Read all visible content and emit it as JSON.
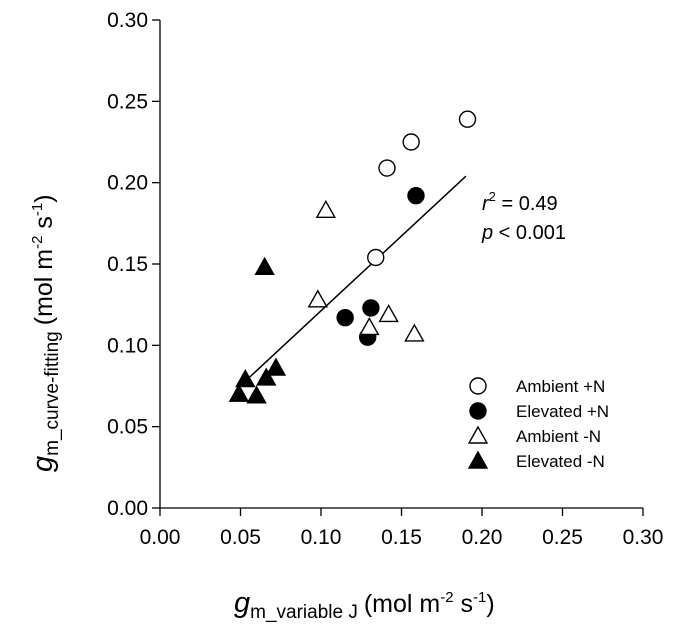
{
  "chart_data": {
    "type": "scatter",
    "title": "",
    "xlabel": {
      "symbol": "g",
      "subscript": "m_variable J",
      "unit_prefix": "(mol m",
      "unit_sup1": "-2",
      "unit_mid": " s",
      "unit_sup2": "-1",
      "unit_suffix": ")"
    },
    "ylabel": {
      "symbol": "g",
      "subscript": "m_curve-fitting",
      "unit_prefix": "(mol m",
      "unit_sup1": "-2",
      "unit_mid": " s",
      "unit_sup2": "-1",
      "unit_suffix": ")"
    },
    "xlim": [
      0,
      0.3
    ],
    "ylim": [
      0,
      0.3
    ],
    "x_ticks": [
      "0.00",
      "0.05",
      "0.10",
      "0.15",
      "0.20",
      "0.25",
      "0.30"
    ],
    "y_ticks": [
      "0.00",
      "0.05",
      "0.10",
      "0.15",
      "0.20",
      "0.25",
      "0.30"
    ],
    "grid": false,
    "legend_position": "bottom-right",
    "series": [
      {
        "name": "Ambient +N",
        "marker": "circle-open",
        "points": [
          [
            0.134,
            0.154
          ],
          [
            0.141,
            0.209
          ],
          [
            0.156,
            0.225
          ],
          [
            0.191,
            0.239
          ]
        ]
      },
      {
        "name": "Elevated +N",
        "marker": "circle-filled",
        "points": [
          [
            0.115,
            0.117
          ],
          [
            0.129,
            0.105
          ],
          [
            0.131,
            0.123
          ],
          [
            0.159,
            0.192
          ]
        ]
      },
      {
        "name": "Ambient -N",
        "marker": "triangle-open",
        "points": [
          [
            0.098,
            0.128
          ],
          [
            0.103,
            0.183
          ],
          [
            0.13,
            0.111
          ],
          [
            0.142,
            0.119
          ],
          [
            0.158,
            0.107
          ]
        ]
      },
      {
        "name": "Elevated -N",
        "marker": "triangle-filled",
        "points": [
          [
            0.049,
            0.07
          ],
          [
            0.053,
            0.079
          ],
          [
            0.06,
            0.069
          ],
          [
            0.065,
            0.148
          ],
          [
            0.066,
            0.08
          ],
          [
            0.072,
            0.086
          ]
        ]
      }
    ],
    "regression_line": {
      "x": [
        0.053,
        0.19
      ],
      "y": [
        0.078,
        0.204
      ]
    },
    "annotations": {
      "r2_symbol": "r",
      "r2_exp": "2",
      "r2_value": " = 0.49",
      "p_symbol": "p",
      "p_value": " < 0.001"
    }
  }
}
